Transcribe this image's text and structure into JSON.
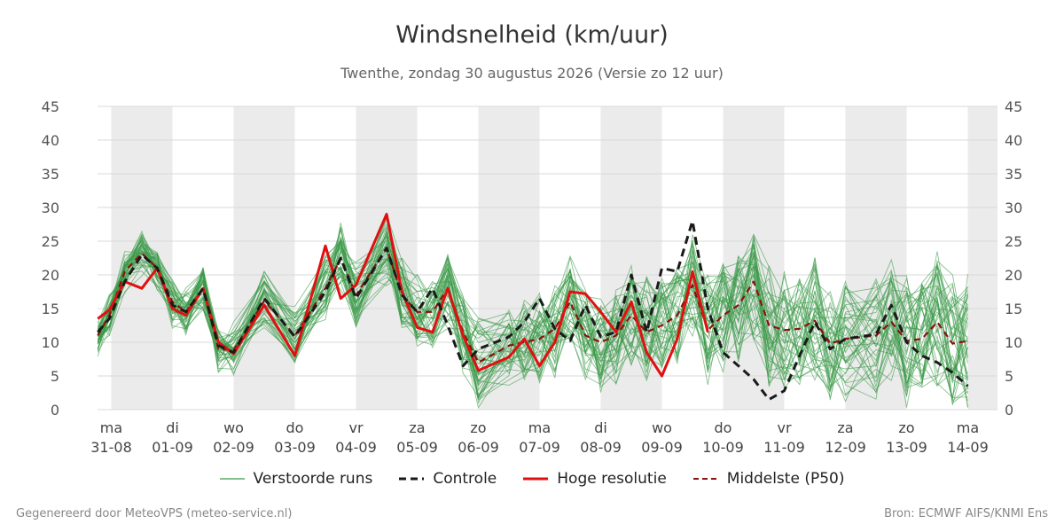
{
  "title": "Windsnelheid (km/uur)",
  "subtitle": "Twenthe, zondag 30 augustus 2026 (Versie zo 12 uur)",
  "footer": {
    "left": "Gegenereerd door MeteoVPS (meteo-service.nl)",
    "right": "Bron: ECMWF AIFS/KNMI Ens"
  },
  "colors": {
    "ensemble": "#3a9a48",
    "control": "#1a1a1a",
    "hires": "#e01010",
    "median": "#8b1010",
    "weekend_band": "#ebebeb",
    "grid": "#d9d9d9"
  },
  "legend": [
    {
      "label": "Verstoorde runs",
      "style": "ensemble"
    },
    {
      "label": "Controle",
      "style": "control"
    },
    {
      "label": "Hoge resolutie",
      "style": "hires"
    },
    {
      "label": "Middelste (P50)",
      "style": "median"
    }
  ],
  "chart_data": {
    "type": "line",
    "title": "Windsnelheid (km/uur)",
    "ylim": [
      0,
      45
    ],
    "yticks": [
      0,
      5,
      10,
      15,
      20,
      25,
      30,
      35,
      40,
      45
    ],
    "xlim": [
      -0.22,
      14.0
    ],
    "grid": true,
    "x_ticks": [
      {
        "x": 0,
        "day": "ma",
        "date": "31-08"
      },
      {
        "x": 1,
        "day": "di",
        "date": "01-09"
      },
      {
        "x": 2,
        "day": "wo",
        "date": "02-09"
      },
      {
        "x": 3,
        "day": "do",
        "date": "03-09"
      },
      {
        "x": 4,
        "day": "vr",
        "date": "04-09"
      },
      {
        "x": 5,
        "day": "za",
        "date": "05-09"
      },
      {
        "x": 6,
        "day": "zo",
        "date": "06-09"
      },
      {
        "x": 7,
        "day": "ma",
        "date": "07-09"
      },
      {
        "x": 8,
        "day": "di",
        "date": "08-09"
      },
      {
        "x": 9,
        "day": "wo",
        "date": "09-09"
      },
      {
        "x": 10,
        "day": "do",
        "date": "10-09"
      },
      {
        "x": 11,
        "day": "vr",
        "date": "11-09"
      },
      {
        "x": 12,
        "day": "za",
        "date": "12-09"
      },
      {
        "x": 13,
        "day": "zo",
        "date": "13-09"
      },
      {
        "x": 14,
        "day": "ma",
        "date": "14-09"
      }
    ],
    "shaded_bands": [
      [
        0,
        1
      ],
      [
        2,
        3
      ],
      [
        4,
        5
      ],
      [
        6,
        7
      ],
      [
        8,
        9
      ],
      [
        10,
        11
      ],
      [
        12,
        13
      ],
      [
        14,
        14.5
      ]
    ],
    "series": [
      {
        "name": "Controle",
        "style": "control",
        "x": [
          -0.22,
          -0.03,
          0.22,
          0.5,
          0.75,
          1.0,
          1.22,
          1.5,
          1.75,
          2.0,
          2.5,
          3.0,
          3.5,
          3.75,
          4.0,
          4.5,
          4.75,
          5.0,
          5.25,
          5.5,
          5.75,
          6.0,
          6.5,
          6.75,
          7.0,
          7.25,
          7.5,
          7.75,
          8.0,
          8.25,
          8.5,
          8.75,
          9.0,
          9.25,
          9.5,
          9.75,
          10.0,
          10.25,
          10.5,
          10.75,
          11.0,
          11.25,
          11.5,
          11.75,
          12.0,
          12.5,
          12.75,
          13.0,
          13.25,
          13.5,
          13.75,
          14.0
        ],
        "values": [
          11.5,
          13.5,
          19.0,
          23.0,
          21.0,
          15.5,
          14.5,
          18.0,
          9.5,
          8.5,
          16.5,
          10.8,
          17.5,
          22.5,
          16.5,
          24.0,
          17.0,
          14.5,
          18.0,
          12.5,
          6.5,
          9.0,
          10.8,
          13.0,
          16.5,
          12.0,
          10.2,
          15.5,
          10.8,
          11.5,
          20.0,
          11.5,
          21.0,
          20.5,
          28.0,
          15.0,
          8.5,
          6.5,
          4.5,
          1.5,
          2.8,
          8.0,
          13.0,
          9.0,
          10.5,
          11.2,
          15.5,
          10.0,
          8.0,
          7.0,
          5.5,
          3.5
        ]
      },
      {
        "name": "Hoge resolutie",
        "style": "hires",
        "x": [
          -0.22,
          -0.03,
          0.22,
          0.5,
          0.75,
          1.0,
          1.22,
          1.5,
          1.75,
          2.0,
          2.5,
          3.0,
          3.5,
          3.75,
          4.0,
          4.5,
          4.75,
          5.0,
          5.25,
          5.5,
          5.75,
          6.0,
          6.5,
          6.75,
          7.0,
          7.25,
          7.5,
          7.75,
          8.0,
          8.25,
          8.5,
          8.75,
          9.0,
          9.25,
          9.5,
          9.75
        ],
        "values": [
          13.5,
          14.8,
          19.0,
          18.0,
          21.0,
          15.0,
          14.0,
          18.0,
          10.0,
          8.3,
          15.5,
          8.0,
          24.3,
          16.5,
          18.5,
          29.0,
          17.5,
          12.2,
          11.5,
          18.0,
          11.0,
          5.8,
          7.8,
          10.5,
          6.5,
          10.0,
          17.5,
          17.2,
          14.5,
          11.5,
          16.0,
          8.5,
          5.0,
          10.5,
          20.5,
          11.5
        ]
      },
      {
        "name": "Middelste (P50)",
        "style": "median",
        "x": [
          -0.22,
          -0.03,
          0.22,
          0.5,
          0.75,
          1.0,
          1.22,
          1.5,
          1.75,
          2.0,
          2.5,
          3.0,
          3.5,
          3.75,
          4.0,
          4.5,
          4.75,
          5.0,
          5.25,
          5.5,
          5.75,
          6.0,
          6.5,
          6.75,
          7.0,
          7.25,
          7.5,
          7.75,
          8.0,
          8.25,
          8.5,
          8.75,
          9.0,
          9.25,
          9.5,
          9.75,
          10.0,
          10.25,
          10.5,
          10.75,
          11.0,
          11.25,
          11.5,
          11.75,
          12.0,
          12.5,
          12.75,
          13.0,
          13.25,
          13.5,
          13.75,
          14.0
        ],
        "values": [
          11.0,
          14.0,
          20.5,
          23.2,
          21.0,
          16.0,
          14.5,
          18.0,
          9.0,
          8.8,
          16.2,
          11.0,
          18.0,
          22.5,
          17.0,
          24.0,
          17.0,
          14.5,
          14.5,
          18.0,
          11.5,
          7.0,
          9.5,
          10.0,
          10.5,
          12.0,
          16.0,
          11.0,
          10.0,
          11.0,
          14.0,
          11.5,
          12.5,
          14.0,
          18.5,
          11.8,
          14.0,
          15.5,
          19.0,
          12.5,
          11.8,
          12.0,
          13.2,
          9.8,
          10.5,
          11.0,
          13.0,
          10.2,
          10.5,
          13.0,
          9.8,
          10.2
        ]
      }
    ]
  }
}
